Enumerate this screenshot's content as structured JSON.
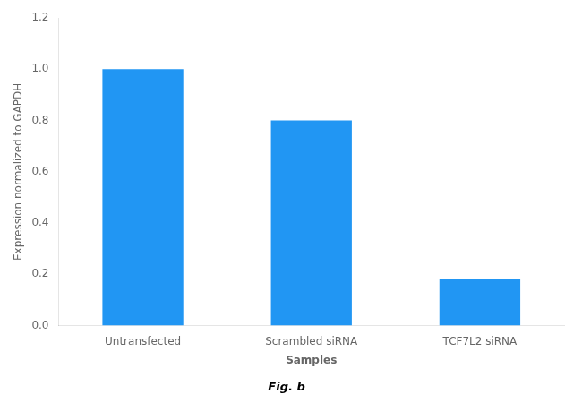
{
  "chart_data": {
    "type": "bar",
    "categories": [
      "Untransfected",
      "Scrambled siRNA",
      "TCF7L2 siRNA"
    ],
    "values": [
      1.0,
      0.8,
      0.18
    ],
    "color": "#2196F3",
    "xlabel": "Samples",
    "ylabel": "Expression normalized to GAPDH",
    "ylim": [
      0,
      1.2
    ],
    "yticks": [
      {
        "value": 0,
        "label": "0.0"
      },
      0.2,
      0.4,
      0.6,
      0.8,
      {
        "value": 1.0,
        "label": "1.0"
      },
      1.2
    ],
    "grid": false,
    "annotations": [
      "Fig. b"
    ]
  }
}
